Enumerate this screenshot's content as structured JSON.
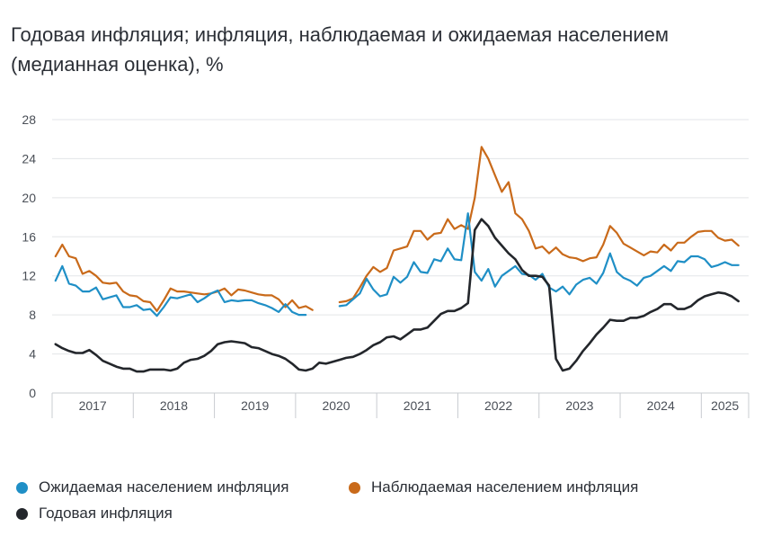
{
  "header": {
    "title_line1": "Годовая инфляция; инфляция, наблюдаемая и ожидаемая населением",
    "title_line2": "(медианная оценка), %"
  },
  "colors": {
    "expected": "#1f8fc6",
    "observed": "#c96a1a",
    "annual": "#23262b",
    "grid": "#e3e5e8",
    "axis_text": "#4a4f57"
  },
  "legend": [
    {
      "key": "expected",
      "label": "Ожидаемая населением инфляция"
    },
    {
      "key": "observed",
      "label": "Наблюдаемая населением инфляция"
    },
    {
      "key": "annual",
      "label": "Годовая инфляция"
    }
  ],
  "chart_data": {
    "type": "line",
    "title": "Годовая инфляция; инфляция, наблюдаемая и ожидаемая населением (медианная оценка), %",
    "ylim": [
      0,
      28
    ],
    "yticks": [
      0,
      4,
      8,
      12,
      16,
      20,
      24,
      28
    ],
    "grid": true,
    "legend_position": "bottom",
    "x_start": "2017-01",
    "x_end": "2025-07",
    "x_labels": [
      "2017",
      "2018",
      "2019",
      "2020",
      "2021",
      "2022",
      "2023",
      "2024",
      "2025"
    ],
    "series": [
      {
        "name": "Ожидаемая населением инфляция",
        "color": "#1f8fc6",
        "values": [
          11.5,
          13.0,
          11.2,
          11.0,
          10.4,
          10.4,
          10.8,
          9.6,
          9.8,
          10.0,
          8.8,
          8.8,
          9.0,
          8.5,
          8.6,
          7.9,
          8.8,
          9.8,
          9.7,
          9.9,
          10.1,
          9.3,
          9.7,
          10.2,
          10.5,
          9.3,
          9.5,
          9.4,
          9.5,
          9.5,
          9.2,
          9.0,
          8.7,
          8.3,
          9.1,
          8.3,
          8.0,
          8.0,
          null,
          null,
          null,
          null,
          8.9,
          9.0,
          9.6,
          10.2,
          11.7,
          10.6,
          9.9,
          10.1,
          11.9,
          11.3,
          11.9,
          13.4,
          12.4,
          12.3,
          13.7,
          13.5,
          14.8,
          13.7,
          13.6,
          18.4,
          12.4,
          11.5,
          12.7,
          10.9,
          12.0,
          12.5,
          13.0,
          12.2,
          12.1,
          11.6,
          12.2,
          10.8,
          10.4,
          10.9,
          10.1,
          11.1,
          11.6,
          11.8,
          11.2,
          12.3,
          14.3,
          12.4,
          11.8,
          11.5,
          11.0,
          11.8,
          12.0,
          12.5,
          13.0,
          12.5,
          13.5,
          13.4,
          14.0,
          14.0,
          13.7,
          12.9,
          13.1,
          13.4,
          13.1,
          13.1
        ]
      },
      {
        "name": "Наблюдаемая населением инфляция",
        "color": "#c96a1a",
        "values": [
          14.0,
          15.2,
          14.0,
          13.8,
          12.2,
          12.5,
          12.0,
          11.3,
          11.2,
          11.3,
          10.4,
          10.0,
          9.9,
          9.4,
          9.3,
          8.4,
          9.5,
          10.7,
          10.4,
          10.4,
          10.3,
          10.2,
          10.1,
          10.2,
          10.4,
          10.7,
          10.0,
          10.6,
          10.5,
          10.3,
          10.1,
          10.0,
          10.0,
          9.6,
          8.8,
          9.5,
          8.7,
          8.9,
          8.5,
          null,
          null,
          null,
          9.3,
          9.4,
          9.7,
          10.8,
          12.0,
          12.9,
          12.4,
          12.8,
          14.6,
          14.8,
          15.0,
          16.6,
          16.6,
          15.7,
          16.3,
          16.4,
          17.8,
          16.8,
          17.2,
          16.8,
          20.0,
          25.2,
          24.0,
          22.3,
          20.6,
          21.6,
          18.4,
          17.8,
          16.6,
          14.8,
          15.0,
          14.3,
          14.9,
          14.2,
          13.9,
          13.8,
          13.5,
          13.8,
          13.9,
          15.2,
          17.1,
          16.4,
          15.3,
          14.9,
          14.5,
          14.1,
          14.5,
          14.4,
          15.2,
          14.6,
          15.4,
          15.4,
          16.0,
          16.5,
          16.6,
          16.6,
          15.9,
          15.6,
          15.7,
          15.1
        ]
      },
      {
        "name": "Годовая инфляция",
        "color": "#23262b",
        "values": [
          5.0,
          4.6,
          4.3,
          4.1,
          4.1,
          4.4,
          3.9,
          3.3,
          3.0,
          2.7,
          2.5,
          2.5,
          2.2,
          2.2,
          2.4,
          2.4,
          2.4,
          2.3,
          2.5,
          3.1,
          3.4,
          3.5,
          3.8,
          4.3,
          5.0,
          5.2,
          5.3,
          5.2,
          5.1,
          4.7,
          4.6,
          4.3,
          4.0,
          3.8,
          3.5,
          3.0,
          2.4,
          2.3,
          2.5,
          3.1,
          3.0,
          3.2,
          3.4,
          3.6,
          3.7,
          4.0,
          4.4,
          4.9,
          5.2,
          5.7,
          5.8,
          5.5,
          6.0,
          6.5,
          6.5,
          6.7,
          7.4,
          8.1,
          8.4,
          8.4,
          8.7,
          9.2,
          16.7,
          17.8,
          17.1,
          15.9,
          15.1,
          14.3,
          13.7,
          12.6,
          12.0,
          12.0,
          11.9,
          11.0,
          3.5,
          2.3,
          2.5,
          3.3,
          4.3,
          5.1,
          6.0,
          6.7,
          7.5,
          7.4,
          7.4,
          7.7,
          7.7,
          7.9,
          8.3,
          8.6,
          9.1,
          9.1,
          8.6,
          8.6,
          8.9,
          9.5,
          9.9,
          10.1,
          10.3,
          10.2,
          9.9,
          9.4
        ]
      }
    ]
  }
}
